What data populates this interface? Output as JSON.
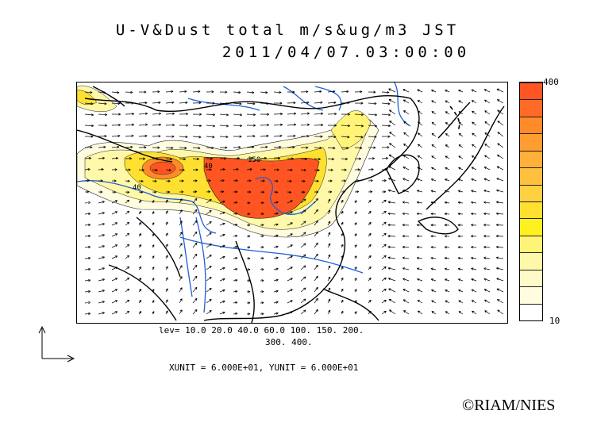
{
  "title_line1": "U-V&Dust total m/s&ug/m3 JST",
  "title_line2": "2011/04/07.03:00:00",
  "colorbar": {
    "max_label": "400",
    "min_label": "10",
    "colors": [
      "#ff5522",
      "#ff6a26",
      "#ff8a2a",
      "#ff9d30",
      "#ffb038",
      "#ffc040",
      "#ffd040",
      "#ffe030",
      "#fff020",
      "#fff478",
      "#fff8a8",
      "#fffac8",
      "#fffce0",
      "#ffffff"
    ]
  },
  "contour_levels_line1": "lev= 10.0 20.0 40.0 60.0 100. 150. 200.",
  "contour_levels_line2": "300. 400.",
  "units_text": "XUNIT = 6.000E+01, YUNIT = 6.000E+01",
  "copyright": "©RIAM/NIES",
  "map_labels": [
    "40",
    "150",
    "40"
  ]
}
